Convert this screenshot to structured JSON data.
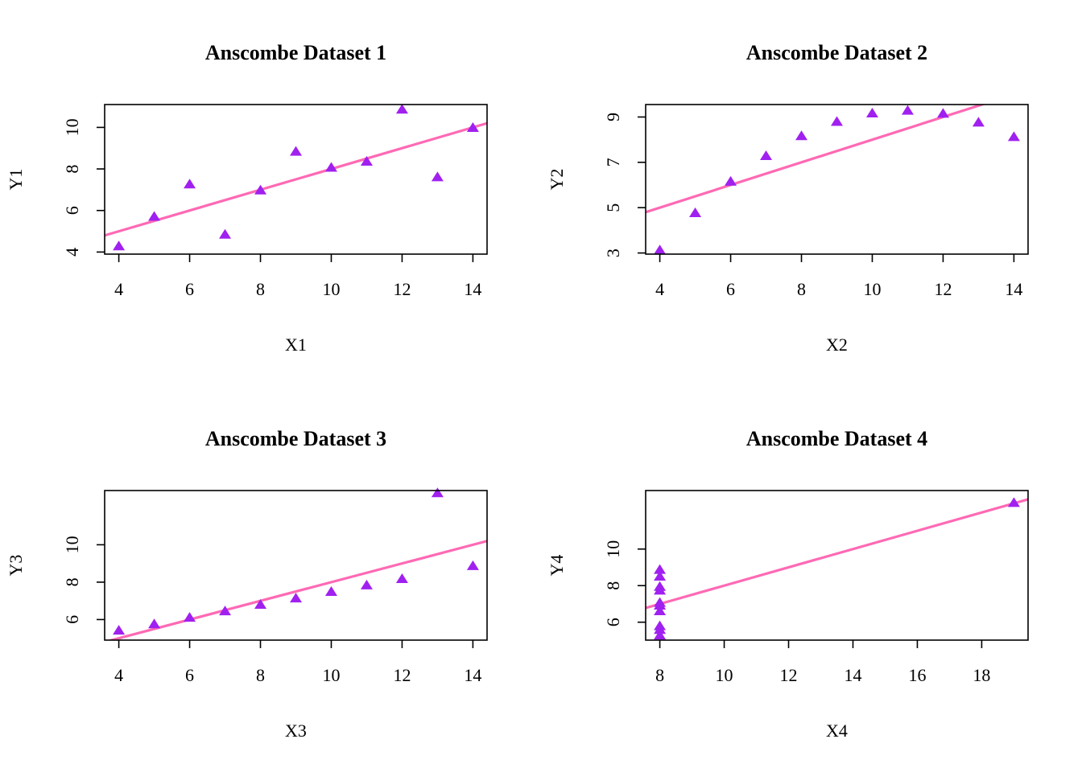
{
  "colors": {
    "points": "#a020f0",
    "line": "#ff69b4",
    "axes": "#000000"
  },
  "marker_icon": "filled-triangle",
  "chart_data": [
    {
      "type": "scatter",
      "title": "Anscombe Dataset 1",
      "xlabel": "X1",
      "ylabel": "Y1",
      "xlim": [
        3.6,
        14.4
      ],
      "ylim": [
        3.9,
        11.1
      ],
      "xticks": [
        4,
        6,
        8,
        10,
        12,
        14
      ],
      "yticks": [
        4,
        6,
        8,
        10
      ],
      "x": [
        10,
        8,
        13,
        9,
        11,
        14,
        6,
        4,
        12,
        7,
        5
      ],
      "y": [
        8.04,
        6.95,
        7.58,
        8.81,
        8.33,
        9.96,
        7.24,
        4.26,
        10.84,
        4.82,
        5.68
      ],
      "fit": {
        "intercept": 3.0,
        "slope": 0.5
      }
    },
    {
      "type": "scatter",
      "title": "Anscombe Dataset 2",
      "xlabel": "X2",
      "ylabel": "Y2",
      "xlim": [
        3.6,
        14.4
      ],
      "ylim": [
        2.95,
        9.55
      ],
      "xticks": [
        4,
        6,
        8,
        10,
        12,
        14
      ],
      "yticks": [
        3,
        5,
        7,
        9
      ],
      "x": [
        10,
        8,
        13,
        9,
        11,
        14,
        6,
        4,
        12,
        7,
        5
      ],
      "y": [
        9.14,
        8.14,
        8.74,
        8.77,
        9.26,
        8.1,
        6.13,
        3.1,
        9.13,
        7.26,
        4.74
      ],
      "fit": {
        "intercept": 3.0,
        "slope": 0.5
      }
    },
    {
      "type": "scatter",
      "title": "Anscombe Dataset 3",
      "xlabel": "X3",
      "ylabel": "Y3",
      "xlim": [
        3.6,
        14.4
      ],
      "ylim": [
        4.9,
        12.9
      ],
      "xticks": [
        4,
        6,
        8,
        10,
        12,
        14
      ],
      "yticks": [
        6,
        8,
        10
      ],
      "x": [
        10,
        8,
        13,
        9,
        11,
        14,
        6,
        4,
        12,
        7,
        5
      ],
      "y": [
        7.46,
        6.77,
        12.74,
        7.11,
        7.81,
        8.84,
        6.08,
        5.39,
        8.15,
        6.42,
        5.73
      ],
      "fit": {
        "intercept": 3.0,
        "slope": 0.5
      }
    },
    {
      "type": "scatter",
      "title": "Anscombe Dataset 4",
      "xlabel": "X4",
      "ylabel": "Y4",
      "xlim": [
        7.56,
        19.44
      ],
      "ylim": [
        5.02,
        13.2
      ],
      "xticks": [
        8,
        10,
        12,
        14,
        16,
        18
      ],
      "yticks": [
        6,
        8,
        10
      ],
      "x": [
        8,
        8,
        8,
        8,
        8,
        8,
        8,
        19,
        8,
        8,
        8
      ],
      "y": [
        6.58,
        5.76,
        7.71,
        8.84,
        8.47,
        7.04,
        5.25,
        12.5,
        5.56,
        7.91,
        6.89
      ],
      "fit": {
        "intercept": 3.0,
        "slope": 0.5
      }
    }
  ]
}
